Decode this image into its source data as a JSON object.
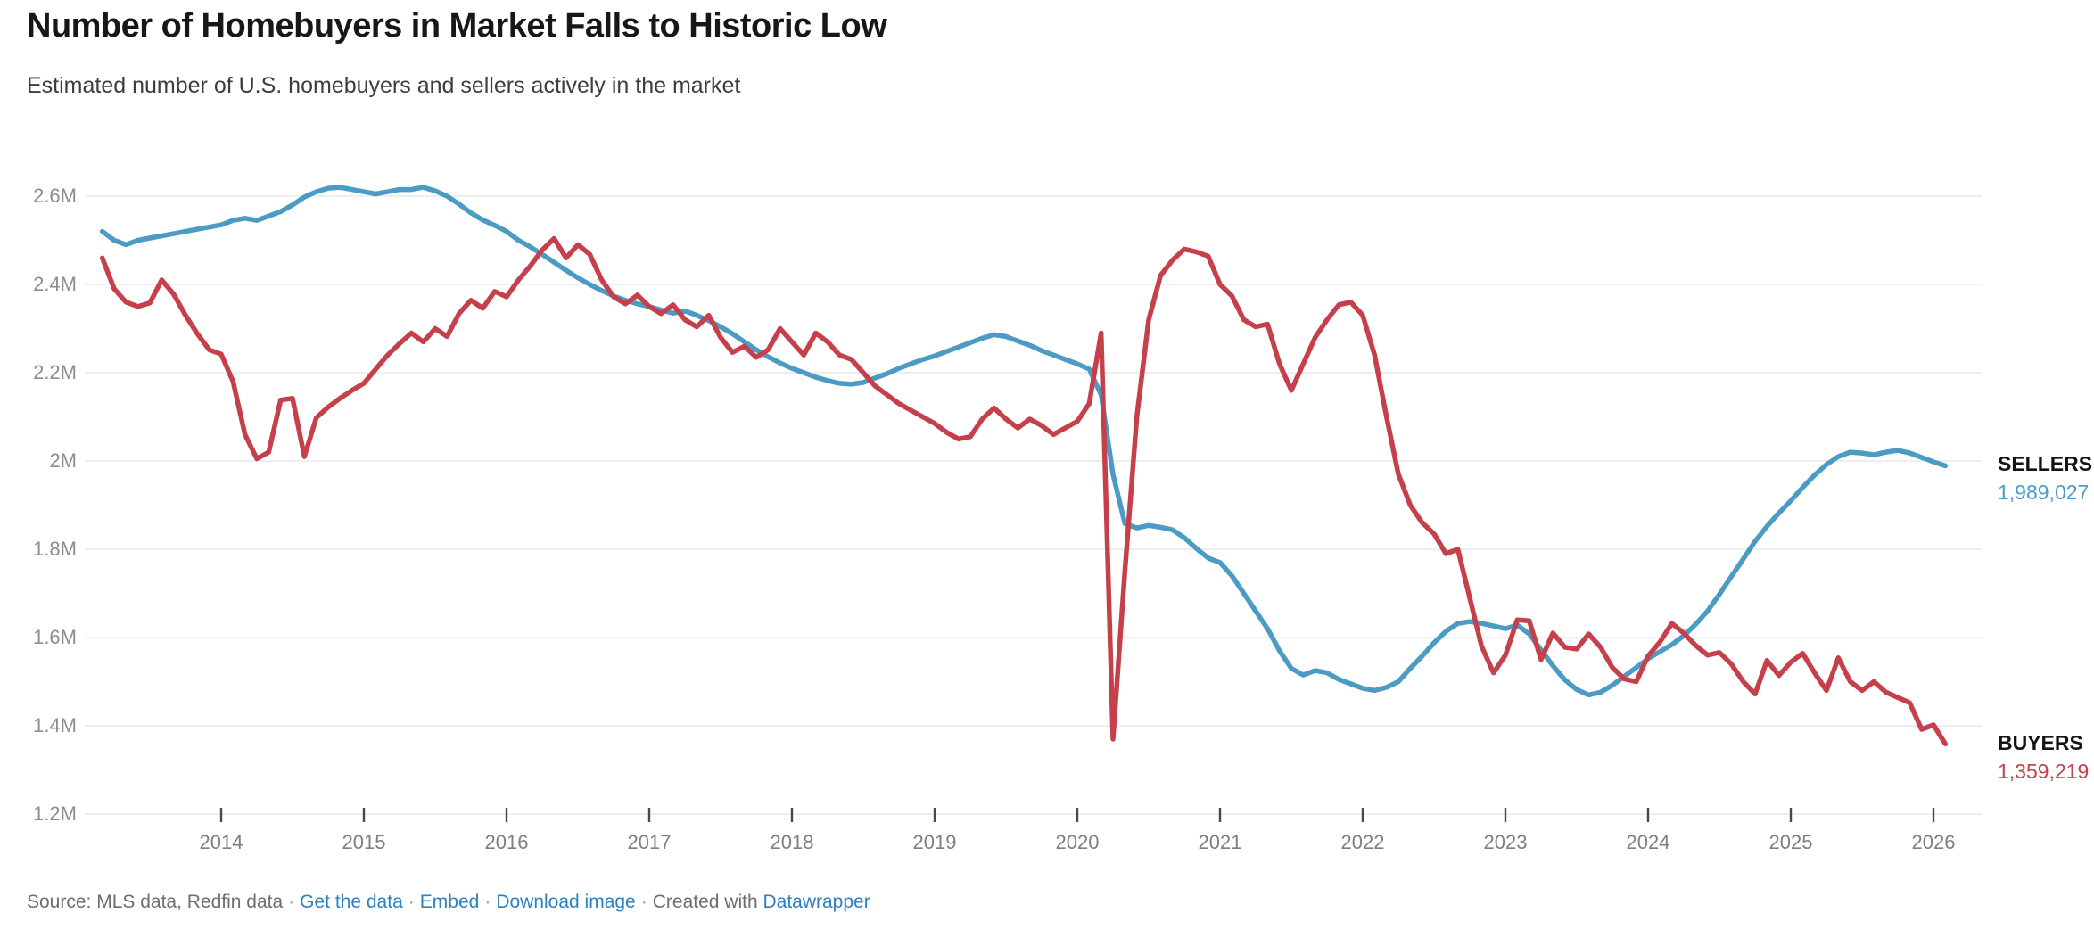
{
  "header": {
    "title": "Number of Homebuyers in Market Falls to Historic Low",
    "subtitle": "Estimated number of U.S. homebuyers and sellers actively in the market"
  },
  "colors": {
    "sellers_line": "#4b9bc5",
    "buyers_line": "#c5404a",
    "grid": "#e8e8e8",
    "axis_text": "#8d8d8d",
    "tick_mark": "#4a4a4a",
    "link_blue": "#2e81c0",
    "footer_gray": "#6e6e6e"
  },
  "chart_data": {
    "type": "line",
    "title": "Number of Homebuyers in Market Falls to Historic Low",
    "subtitle": "Estimated number of U.S. homebuyers and sellers actively in the market",
    "unit": "millions of people",
    "frequency": "monthly",
    "x_start": "2013-03",
    "x_end": "2026-02",
    "xlim": [
      2013.05,
      2026.35
    ],
    "ylim": [
      1.2,
      2.66
    ],
    "grid": "horizontal-only",
    "legend_position": "right-edge-direct-labels",
    "y_tick_labels": [
      "2.6M",
      "2.4M",
      "2.2M",
      "2M",
      "1.8M",
      "1.6M",
      "1.4M",
      "1.2M"
    ],
    "y_tick_values": [
      2.6,
      2.4,
      2.2,
      2.0,
      1.8,
      1.6,
      1.4,
      1.2
    ],
    "x_tick_labels": [
      "2014",
      "2015",
      "2016",
      "2017",
      "2018",
      "2019",
      "2020",
      "2021",
      "2022",
      "2023",
      "2024",
      "2025",
      "2026"
    ],
    "x_tick_years": [
      2014,
      2015,
      2016,
      2017,
      2018,
      2019,
      2020,
      2021,
      2022,
      2023,
      2024,
      2025,
      2026
    ],
    "series": [
      {
        "name": "SELLERS",
        "end_label": "SELLERS",
        "end_value": 1989027,
        "end_value_label": "1,989,027",
        "color": "#4b9bc5",
        "values_millions": [
          2.52,
          2.5,
          2.49,
          2.5,
          2.505,
          2.51,
          2.515,
          2.52,
          2.525,
          2.53,
          2.535,
          2.545,
          2.55,
          2.545,
          2.555,
          2.565,
          2.58,
          2.598,
          2.61,
          2.618,
          2.62,
          2.615,
          2.61,
          2.605,
          2.61,
          2.615,
          2.615,
          2.62,
          2.612,
          2.6,
          2.582,
          2.562,
          2.546,
          2.534,
          2.52,
          2.5,
          2.485,
          2.468,
          2.45,
          2.432,
          2.415,
          2.4,
          2.386,
          2.374,
          2.364,
          2.356,
          2.35,
          2.342,
          2.335,
          2.34,
          2.33,
          2.318,
          2.304,
          2.288,
          2.27,
          2.252,
          2.236,
          2.222,
          2.21,
          2.2,
          2.19,
          2.182,
          2.176,
          2.174,
          2.178,
          2.188,
          2.198,
          2.21,
          2.22,
          2.23,
          2.238,
          2.248,
          2.258,
          2.268,
          2.278,
          2.286,
          2.282,
          2.272,
          2.262,
          2.25,
          2.24,
          2.23,
          2.22,
          2.208,
          2.15,
          1.97,
          1.858,
          1.848,
          1.854,
          1.85,
          1.844,
          1.826,
          1.802,
          1.78,
          1.77,
          1.74,
          1.7,
          1.66,
          1.62,
          1.57,
          1.53,
          1.515,
          1.525,
          1.52,
          1.505,
          1.495,
          1.485,
          1.48,
          1.487,
          1.5,
          1.53,
          1.558,
          1.588,
          1.614,
          1.632,
          1.636,
          1.632,
          1.626,
          1.62,
          1.628,
          1.608,
          1.572,
          1.536,
          1.504,
          1.482,
          1.47,
          1.476,
          1.492,
          1.512,
          1.532,
          1.552,
          1.568,
          1.584,
          1.604,
          1.63,
          1.66,
          1.698,
          1.738,
          1.778,
          1.818,
          1.852,
          1.882,
          1.91,
          1.94,
          1.968,
          1.992,
          2.01,
          2.02,
          2.018,
          2.014,
          2.02,
          2.024,
          2.018,
          2.008,
          1.998,
          1.989
        ]
      },
      {
        "name": "BUYERS",
        "end_label": "BUYERS",
        "end_value": 1359219,
        "end_value_label": "1,359,219",
        "color": "#c5404a",
        "values_millions": [
          2.46,
          2.39,
          2.36,
          2.35,
          2.358,
          2.41,
          2.378,
          2.33,
          2.288,
          2.252,
          2.242,
          2.18,
          2.06,
          2.005,
          2.02,
          2.138,
          2.142,
          2.01,
          2.098,
          2.122,
          2.142,
          2.16,
          2.176,
          2.208,
          2.24,
          2.266,
          2.29,
          2.27,
          2.3,
          2.282,
          2.334,
          2.364,
          2.346,
          2.384,
          2.372,
          2.41,
          2.442,
          2.478,
          2.504,
          2.46,
          2.49,
          2.468,
          2.41,
          2.372,
          2.356,
          2.376,
          2.35,
          2.334,
          2.354,
          2.32,
          2.304,
          2.33,
          2.28,
          2.246,
          2.26,
          2.235,
          2.252,
          2.3,
          2.27,
          2.24,
          2.29,
          2.27,
          2.24,
          2.23,
          2.2,
          2.17,
          2.15,
          2.13,
          2.115,
          2.1,
          2.085,
          2.065,
          2.05,
          2.055,
          2.095,
          2.12,
          2.095,
          2.075,
          2.095,
          2.08,
          2.06,
          2.075,
          2.09,
          2.13,
          2.29,
          1.37,
          1.75,
          2.1,
          2.32,
          2.42,
          2.455,
          2.48,
          2.474,
          2.464,
          2.4,
          2.374,
          2.32,
          2.304,
          2.31,
          2.22,
          2.16,
          2.22,
          2.28,
          2.32,
          2.354,
          2.36,
          2.33,
          2.24,
          2.1,
          1.97,
          1.9,
          1.86,
          1.835,
          1.79,
          1.8,
          1.69,
          1.58,
          1.52,
          1.56,
          1.64,
          1.638,
          1.55,
          1.61,
          1.578,
          1.574,
          1.608,
          1.578,
          1.532,
          1.506,
          1.5,
          1.558,
          1.59,
          1.632,
          1.61,
          1.582,
          1.56,
          1.566,
          1.54,
          1.5,
          1.472,
          1.548,
          1.514,
          1.544,
          1.564,
          1.52,
          1.48,
          1.554,
          1.5,
          1.48,
          1.5,
          1.476,
          1.464,
          1.452,
          1.392,
          1.402,
          1.359
        ]
      }
    ]
  },
  "footer": {
    "source_text": "Source: MLS data, Redfin data",
    "separator": "·",
    "link_get_data": "Get the data",
    "link_embed": "Embed",
    "link_download": "Download image",
    "created_with": "Created with",
    "link_datawrapper": "Datawrapper"
  }
}
